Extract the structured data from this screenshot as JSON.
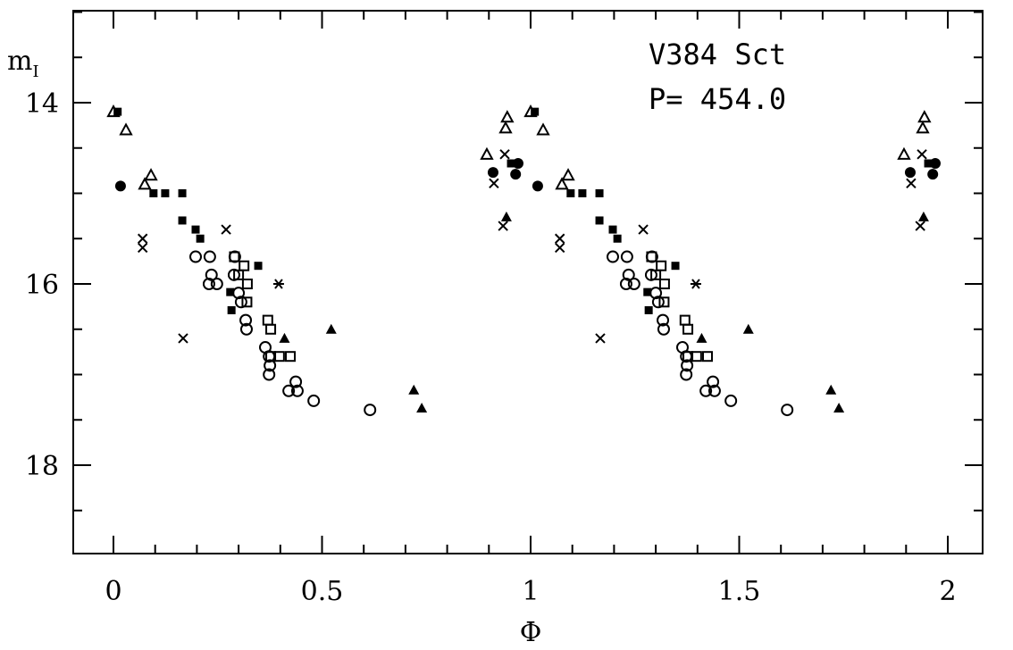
{
  "chart_data": {
    "type": "scatter",
    "title": "",
    "annotation": {
      "star": "V384 Sct",
      "period": "P= 454.0"
    },
    "xlabel": "Φ",
    "ylabel": {
      "base": "m",
      "sub": "I"
    },
    "xlim": [
      -0.1,
      2.08
    ],
    "ylim": [
      19,
      13
    ],
    "y_inverted": true,
    "x_ticks": [
      "0",
      "0.5",
      "1",
      "1.5",
      "2"
    ],
    "x_tick_values": [
      0,
      0.5,
      1,
      1.5,
      2
    ],
    "y_ticks": [
      "14",
      "16",
      "18"
    ],
    "y_tick_values": [
      14,
      16,
      18
    ],
    "phase_repeated": true,
    "series": [
      {
        "name": "open-triangle",
        "marker": "open-triangle",
        "phase": [
          0.0,
          0.03,
          0.09,
          0.075,
          0.895,
          0.944,
          0.94
        ],
        "mag": [
          14.1,
          14.3,
          14.8,
          14.9,
          14.57,
          14.16,
          14.28
        ]
      },
      {
        "name": "filled-square",
        "marker": "filled-square",
        "phase": [
          0.01,
          0.096,
          0.124,
          0.165,
          0.165,
          0.197,
          0.208,
          0.347,
          0.28,
          0.283,
          0.953
        ],
        "mag": [
          14.1,
          15.0,
          15.0,
          15.0,
          15.3,
          15.4,
          15.5,
          15.8,
          16.09,
          16.29,
          14.67
        ]
      },
      {
        "name": "filled-circle",
        "marker": "filled-circle",
        "phase": [
          0.017,
          0.91,
          0.97,
          0.964
        ],
        "mag": [
          14.92,
          14.77,
          14.67,
          14.79
        ]
      },
      {
        "name": "cross",
        "marker": "cross",
        "phase": [
          0.07,
          0.07,
          0.27,
          0.167,
          0.938,
          0.912,
          0.934
        ],
        "mag": [
          15.5,
          15.6,
          15.4,
          16.6,
          14.57,
          14.89,
          15.36
        ]
      },
      {
        "name": "asterisk",
        "marker": "asterisk",
        "phase": [
          0.396
        ],
        "mag": [
          16.0
        ]
      },
      {
        "name": "open-circle",
        "marker": "open-circle",
        "phase": [
          0.197,
          0.231,
          0.235,
          0.229,
          0.248,
          0.291,
          0.289,
          0.3,
          0.306,
          0.317,
          0.319,
          0.364,
          0.373,
          0.375,
          0.373,
          0.42,
          0.441,
          0.437,
          0.48,
          0.615
        ],
        "mag": [
          15.7,
          15.7,
          15.9,
          16.0,
          16.0,
          15.7,
          15.9,
          16.1,
          16.2,
          16.4,
          16.5,
          16.7,
          16.8,
          16.9,
          17.0,
          17.18,
          17.18,
          17.08,
          17.29,
          17.39
        ]
      },
      {
        "name": "open-square",
        "marker": "open-square",
        "phase": [
          0.29,
          0.313,
          0.3,
          0.321,
          0.32,
          0.37,
          0.377,
          0.377,
          0.398,
          0.424
        ],
        "mag": [
          15.7,
          15.8,
          15.9,
          16.0,
          16.2,
          16.4,
          16.5,
          16.8,
          16.8,
          16.8
        ]
      },
      {
        "name": "filled-triangle",
        "marker": "filled-triangle",
        "phase": [
          0.41,
          0.522,
          0.72,
          0.739,
          0.942
        ],
        "mag": [
          16.6,
          16.5,
          17.17,
          17.37,
          15.26
        ]
      }
    ]
  }
}
